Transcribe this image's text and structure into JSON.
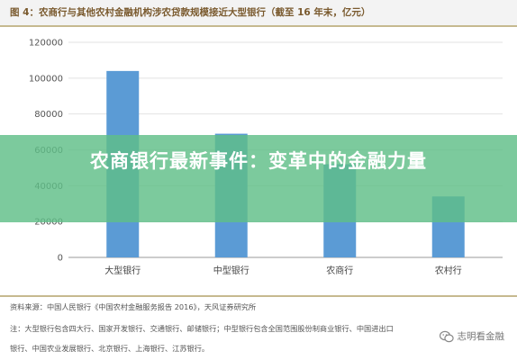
{
  "header": {
    "title": "图 4：农商行与其他农村金融机构涉农贷款规模接近大型银行（截至 16 年末，亿元）"
  },
  "banner": {
    "text": "农商银行最新事件：变革中的金融力量"
  },
  "chart_data": {
    "type": "bar",
    "categories": [
      "大型银行",
      "中型银行",
      "农商行",
      "农村行"
    ],
    "values": [
      104000,
      69000,
      52000,
      34000
    ],
    "ylim": [
      0,
      120000
    ],
    "yticks": [
      "0",
      "20000",
      "40000",
      "60000",
      "80000",
      "100000",
      "120000"
    ],
    "grid": true,
    "bar_color": "#5b9bd5"
  },
  "footer": {
    "source": "资料来源：中国人民银行《中国农村金融服务报告 2016》，天风证券研究所",
    "note1": "注：大型银行包含四大行、国家开发银行、交通银行、邮储银行；中型银行包含全国范围股份制商业银行、中国进出口",
    "note2": "银行、中国农业发展银行、北京银行、上海银行、江苏银行。"
  },
  "watermark": {
    "text": "志明看金融",
    "icon": "wechat-icon"
  }
}
